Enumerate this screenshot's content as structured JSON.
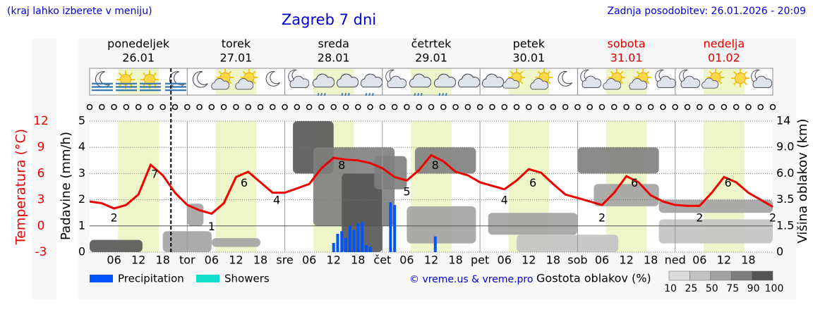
{
  "chart_data": {
    "type": "meteogram",
    "note": "(kraj lahko izberete v meniju)",
    "title": "Zagreb 7 dni",
    "updated": "Zadnja posodobitev: 26.01.2026 - 20:09",
    "credit": "© vreme.us & vreme.pro",
    "days": [
      {
        "name": "ponedeljek",
        "date": "26.01",
        "color": "#000000"
      },
      {
        "name": "torek",
        "date": "27.01",
        "color": "#000000"
      },
      {
        "name": "sreda",
        "date": "28.01",
        "color": "#000000"
      },
      {
        "name": "četrtek",
        "date": "29.01",
        "color": "#000000"
      },
      {
        "name": "petek",
        "date": "30.01",
        "color": "#000000"
      },
      {
        "name": "sobota",
        "date": "31.01",
        "color": "#dd0000"
      },
      {
        "name": "nedelja",
        "date": "01.02",
        "color": "#dd0000"
      }
    ],
    "xlim": [
      0,
      168
    ],
    "xticks": [
      {
        "value": 6,
        "label": "06"
      },
      {
        "value": 12,
        "label": "12"
      },
      {
        "value": 18,
        "label": "18"
      },
      {
        "value": 24,
        "label": "tor"
      },
      {
        "value": 30,
        "label": "06"
      },
      {
        "value": 36,
        "label": "12"
      },
      {
        "value": 42,
        "label": "18"
      },
      {
        "value": 48,
        "label": "sre"
      },
      {
        "value": 54,
        "label": "06"
      },
      {
        "value": 60,
        "label": "12"
      },
      {
        "value": 66,
        "label": "18"
      },
      {
        "value": 72,
        "label": "čet"
      },
      {
        "value": 78,
        "label": "06"
      },
      {
        "value": 84,
        "label": "12"
      },
      {
        "value": 90,
        "label": "18"
      },
      {
        "value": 96,
        "label": "pet"
      },
      {
        "value": 102,
        "label": "06"
      },
      {
        "value": 108,
        "label": "12"
      },
      {
        "value": 114,
        "label": "18"
      },
      {
        "value": 120,
        "label": "sob"
      },
      {
        "value": 126,
        "label": "06"
      },
      {
        "value": 132,
        "label": "12"
      },
      {
        "value": 138,
        "label": "18"
      },
      {
        "value": 144,
        "label": "ned"
      },
      {
        "value": 150,
        "label": "06"
      },
      {
        "value": 156,
        "label": "12"
      },
      {
        "value": 162,
        "label": "18"
      }
    ],
    "daylight": [
      7,
      17
    ],
    "now": 20,
    "ylabel": "Padavine (mm/h)",
    "ylim": [
      0,
      5
    ],
    "yticks": [
      0,
      1,
      2,
      3,
      4,
      5
    ],
    "series": [
      {
        "name": "Precipitation",
        "color": "#0055ff",
        "x": [
          60,
          61,
          62,
          63,
          64,
          65,
          66,
          67,
          68,
          69,
          74,
          75,
          85
        ],
        "values": [
          0.35,
          0.7,
          0.8,
          0.55,
          1.0,
          0.85,
          1.1,
          1.15,
          0.27,
          0.2,
          1.9,
          1.8,
          0.6
        ]
      },
      {
        "name": "Showers",
        "color": "#11ddcc",
        "x": [],
        "values": []
      }
    ],
    "temperature": {
      "label": "Temperatura (°C)",
      "color": "#ee0000",
      "ylim": [
        -3,
        12
      ],
      "yticks": [
        -3,
        0,
        3,
        6,
        9,
        12
      ],
      "x": [
        0,
        3,
        6,
        9,
        12,
        15,
        18,
        21,
        24,
        27,
        30,
        33,
        36,
        39,
        42,
        45,
        48,
        51,
        54,
        57,
        60,
        63,
        66,
        69,
        72,
        75,
        78,
        81,
        84,
        87,
        90,
        93,
        96,
        99,
        102,
        105,
        108,
        111,
        114,
        117,
        120,
        123,
        126,
        129,
        132,
        135,
        138,
        141,
        144,
        147,
        150,
        153,
        156,
        159,
        162,
        165,
        168
      ],
      "values": [
        2.8,
        2.6,
        2.0,
        2.4,
        3.6,
        7.0,
        5.8,
        3.8,
        2.4,
        1.8,
        1.4,
        2.6,
        5.6,
        6.2,
        5.0,
        3.8,
        3.8,
        4.3,
        4.8,
        6.6,
        7.8,
        7.6,
        7.5,
        7.2,
        6.6,
        5.6,
        5.2,
        6.4,
        8.1,
        7.4,
        6.2,
        5.8,
        5.0,
        4.6,
        4.2,
        5.2,
        6.5,
        6.1,
        4.8,
        3.6,
        3.2,
        2.8,
        2.4,
        3.8,
        5.7,
        5.0,
        3.5,
        2.8,
        2.4,
        2.3,
        2.3,
        3.8,
        5.6,
        5.0,
        3.8,
        3.0,
        2.2
      ],
      "extremes": [
        {
          "x": 6,
          "value": 2
        },
        {
          "x": 16,
          "value": 7
        },
        {
          "x": 30,
          "value": 1
        },
        {
          "x": 38,
          "value": 6
        },
        {
          "x": 46,
          "value": 4
        },
        {
          "x": 62,
          "value": 8
        },
        {
          "x": 78,
          "value": 5
        },
        {
          "x": 85,
          "value": 8
        },
        {
          "x": 102,
          "value": 4
        },
        {
          "x": 109,
          "value": 6
        },
        {
          "x": 126,
          "value": 2
        },
        {
          "x": 134,
          "value": 6
        },
        {
          "x": 150,
          "value": 2
        },
        {
          "x": 157,
          "value": 6
        },
        {
          "x": 168,
          "value": 2
        }
      ]
    },
    "cloud": {
      "label": "Višina oblakov (km)",
      "ticks": [
        0,
        1.5,
        3.5,
        {
          "value": 6.0,
          "label": "6.0"
        },
        {
          "value": 9.0,
          "label": "9.0"
        },
        14
      ],
      "legend_label": "Gostota oblakov (%)",
      "scale": [
        10,
        25,
        50,
        75,
        90,
        100
      ],
      "colors": [
        "#dcdcdc",
        "#c2c2c2",
        "#a2a2a2",
        "#7e7e7e",
        "#555555"
      ],
      "layers": [
        {
          "x": [
            0,
            13
          ],
          "height": [
            0,
            0.7
          ],
          "density": 90
        },
        {
          "x": [
            18,
            30
          ],
          "height": [
            0,
            1.2
          ],
          "density": 50
        },
        {
          "x": [
            24,
            28
          ],
          "height": [
            1.5,
            3.2
          ],
          "density": 50
        },
        {
          "x": [
            30,
            42
          ],
          "height": [
            0.3,
            0.8
          ],
          "density": 50
        },
        {
          "x": [
            105,
            130
          ],
          "height": [
            0,
            1.0
          ],
          "density": 25
        },
        {
          "x": [
            50,
            60
          ],
          "height": [
            6.0,
            14
          ],
          "density": 90
        },
        {
          "x": [
            55,
            75
          ],
          "height": [
            1.5,
            9.0
          ],
          "density": 75
        },
        {
          "x": [
            62,
            72
          ],
          "height": [
            0,
            6.0
          ],
          "density": 90
        },
        {
          "x": [
            70,
            78
          ],
          "height": [
            4.5,
            8.0
          ],
          "density": 75
        },
        {
          "x": [
            80,
            95
          ],
          "height": [
            6.0,
            9.0
          ],
          "density": 75
        },
        {
          "x": [
            78,
            95
          ],
          "height": [
            0.5,
            3.0
          ],
          "density": 50
        },
        {
          "x": [
            98,
            120
          ],
          "height": [
            1.0,
            2.5
          ],
          "density": 50
        },
        {
          "x": [
            120,
            140
          ],
          "height": [
            6.0,
            9.0
          ],
          "density": 75
        },
        {
          "x": [
            124,
            140
          ],
          "height": [
            3.0,
            5.0
          ],
          "density": 50
        },
        {
          "x": [
            140,
            168
          ],
          "height": [
            0.5,
            2.0
          ],
          "density": 25
        },
        {
          "x": [
            140,
            168
          ],
          "height": [
            2.5,
            3.5
          ],
          "density": 50
        }
      ]
    }
  }
}
